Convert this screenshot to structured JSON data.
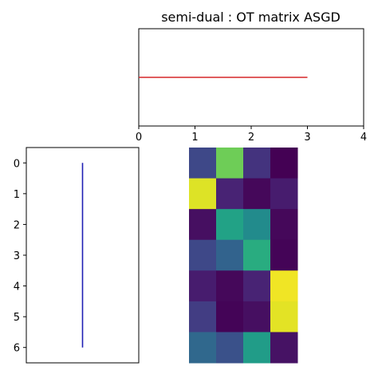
{
  "chart_data": {
    "title": "semi-dual : OT matrix ASGD",
    "top_plot": {
      "type": "line",
      "x": [
        0,
        3
      ],
      "y": [
        0.5,
        0.5
      ],
      "xlim": [
        0,
        4
      ],
      "xticks": [
        "0",
        "1",
        "2",
        "3",
        "4"
      ],
      "color": "#d62728"
    },
    "left_plot": {
      "type": "line",
      "x": [
        0.5,
        0.5
      ],
      "y": [
        0,
        6
      ],
      "ylim": [
        6.5,
        -0.5
      ],
      "yticks": [
        "0",
        "1",
        "2",
        "3",
        "4",
        "5",
        "6"
      ],
      "color": "#1f1fb4"
    },
    "heatmap": {
      "type": "heatmap",
      "colormap": "viridis",
      "rows": 7,
      "cols": 4,
      "values": [
        [
          0.22,
          0.78,
          0.15,
          0.0
        ],
        [
          0.95,
          0.1,
          0.02,
          0.08
        ],
        [
          0.04,
          0.58,
          0.48,
          0.02
        ],
        [
          0.22,
          0.32,
          0.62,
          0.01
        ],
        [
          0.08,
          0.02,
          0.1,
          0.98
        ],
        [
          0.18,
          0.01,
          0.04,
          0.96
        ],
        [
          0.34,
          0.25,
          0.55,
          0.05
        ]
      ]
    }
  }
}
